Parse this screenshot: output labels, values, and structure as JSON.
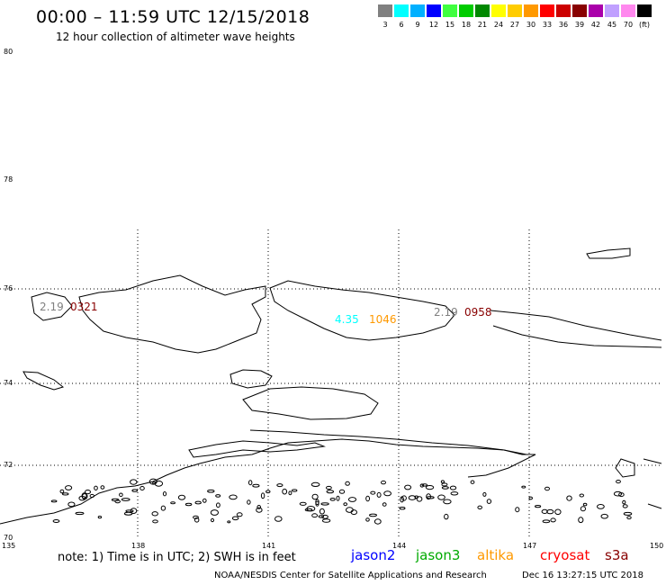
{
  "header": {
    "title": "00:00 – 11:59 UTC 12/15/2018",
    "subtitle": "12 hour collection of altimeter wave heights"
  },
  "legend": {
    "bins": [
      {
        "label": "3",
        "color": "#808080"
      },
      {
        "label": "6",
        "color": "#00ffff"
      },
      {
        "label": "9",
        "color": "#00b0ff"
      },
      {
        "label": "12",
        "color": "#0000ff"
      },
      {
        "label": "15",
        "color": "#40ff40"
      },
      {
        "label": "18",
        "color": "#00cc00"
      },
      {
        "label": "21",
        "color": "#008800"
      },
      {
        "label": "24",
        "color": "#ffff00"
      },
      {
        "label": "27",
        "color": "#ffcc00"
      },
      {
        "label": "30",
        "color": "#ff9900"
      },
      {
        "label": "33",
        "color": "#ff0000"
      },
      {
        "label": "36",
        "color": "#cc0000"
      },
      {
        "label": "39",
        "color": "#880000"
      },
      {
        "label": "42",
        "color": "#aa00aa"
      },
      {
        "label": "45",
        "color": "#c0a0ff"
      },
      {
        "label": "70",
        "color": "#ff88ee"
      },
      {
        "label": "(ft)",
        "color": "#000000"
      }
    ],
    "unit": "(ft)"
  },
  "axes": {
    "lat_labels": [
      "80",
      "78",
      "76",
      "74",
      "72",
      "70"
    ],
    "lon_labels": [
      "135",
      "138",
      "141",
      "144",
      "147",
      "150"
    ]
  },
  "observations": [
    {
      "height": "2.19",
      "time": "0321",
      "height_color": "#808080",
      "time_color": "#880000"
    },
    {
      "height": "4.35",
      "time": "1046",
      "height_color": "#00ffff",
      "time_color": "#ff9900"
    },
    {
      "height": "2.19",
      "time": "0958",
      "height_color": "#808080",
      "time_color": "#880000"
    }
  ],
  "footer": {
    "note": "note: 1) Time is in UTC; 2) SWH is in feet",
    "satellites": [
      {
        "name": "jason2",
        "color": "#0000ff"
      },
      {
        "name": "jason3",
        "color": "#00aa00"
      },
      {
        "name": "altika",
        "color": "#ff9900"
      },
      {
        "name": "cryosat",
        "color": "#ff0000"
      },
      {
        "name": "s3a",
        "color": "#880000"
      }
    ],
    "credit": "NOAA/NESDIS Center for Satellite Applications and Research",
    "timestamp": "Dec 16 13:27:15 UTC 2018"
  }
}
